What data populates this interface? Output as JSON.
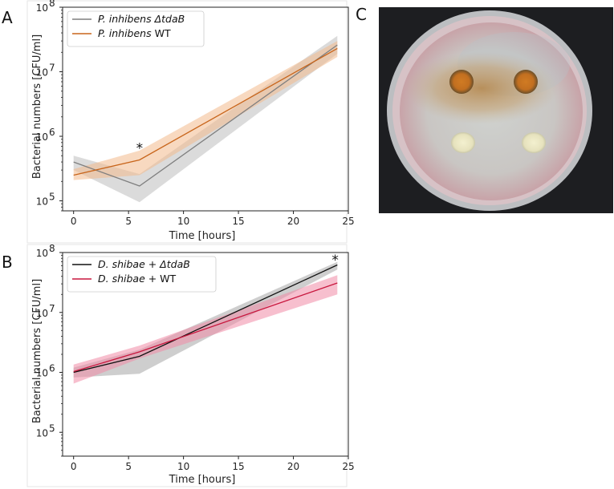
{
  "panel_letters": {
    "a": "A",
    "b": "B",
    "c": "C"
  },
  "chart_data": [
    {
      "panel": "A",
      "type": "line",
      "xlabel": "Time [hours]",
      "ylabel": "Bacterial numbers [CFU/ml]",
      "xlim": [
        -1,
        25
      ],
      "ylim": [
        70000,
        100000000
      ],
      "yscale": "log",
      "xticks": [
        0,
        5,
        10,
        15,
        20,
        25
      ],
      "yticks": [
        {
          "value": 100000,
          "base": "10",
          "exp": "5"
        },
        {
          "value": 1000000,
          "base": "10",
          "exp": "6"
        },
        {
          "value": 10000000,
          "base": "10",
          "exp": "7"
        },
        {
          "value": 100000000,
          "base": "10",
          "exp": "8"
        }
      ],
      "legend_position": "top-left",
      "series": [
        {
          "name": "P. inhibens ΔtdaB",
          "legend_name": "P. inhibens",
          "legend_suffix": "ΔtdaB",
          "color": "#7f7f7f",
          "band_color": "#bdbdbd",
          "x": [
            0,
            6,
            24
          ],
          "y": [
            400000,
            170000,
            26000000
          ],
          "lower": [
            300000,
            95000,
            19000000
          ],
          "upper": [
            500000,
            260000,
            36000000
          ]
        },
        {
          "name": "P. inhibens WT",
          "legend_name": "P. inhibens",
          "legend_suffix": "WT",
          "color": "#c8651b",
          "band_color": "#f2b98c",
          "x": [
            0,
            6,
            24
          ],
          "y": [
            250000,
            430000,
            23000000
          ],
          "lower": [
            210000,
            250000,
            17000000
          ],
          "upper": [
            310000,
            600000,
            30000000
          ]
        }
      ],
      "annotations": [
        {
          "text": "*",
          "x": 6,
          "y": 700000
        }
      ]
    },
    {
      "panel": "B",
      "type": "line",
      "xlabel": "Time [hours]",
      "ylabel": "Bacterial numbers [CFU/ml]",
      "xlim": [
        -1,
        25
      ],
      "ylim": [
        40000,
        100000000
      ],
      "yscale": "log",
      "xticks": [
        0,
        5,
        10,
        15,
        20,
        25
      ],
      "yticks": [
        {
          "value": 100000,
          "base": "10",
          "exp": "5"
        },
        {
          "value": 1000000,
          "base": "10",
          "exp": "6"
        },
        {
          "value": 10000000,
          "base": "10",
          "exp": "7"
        },
        {
          "value": 100000000,
          "base": "10",
          "exp": "8"
        }
      ],
      "legend_position": "top-left",
      "series": [
        {
          "name": "D. shibae + ΔtdaB",
          "legend_name": "D. shibae",
          "legend_suffix": "+ ΔtdaB",
          "color": "#111111",
          "band_color": "#a6a6a6",
          "x": [
            0,
            6,
            24
          ],
          "y": [
            1000000,
            1850000,
            62000000
          ],
          "lower": [
            820000,
            950000,
            52000000
          ],
          "upper": [
            1200000,
            2400000,
            70000000
          ]
        },
        {
          "name": "D. shibae + WT",
          "legend_name": "D. shibae",
          "legend_suffix": "+ WT",
          "color": "#c8173e",
          "band_color": "#f08aa5",
          "x": [
            0,
            6,
            24
          ],
          "y": [
            1030000,
            2200000,
            31000000
          ],
          "lower": [
            650000,
            1700000,
            20000000
          ],
          "upper": [
            1350000,
            2800000,
            42000000
          ]
        }
      ],
      "annotations": [
        {
          "text": "*",
          "x": 23.8,
          "y": 80000000
        }
      ]
    }
  ]
}
